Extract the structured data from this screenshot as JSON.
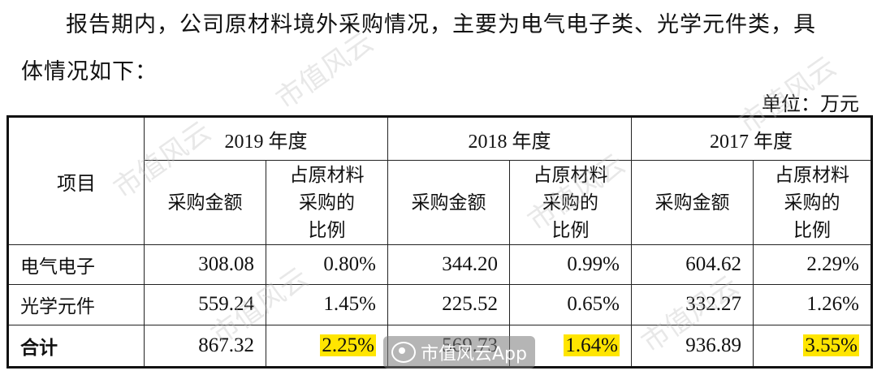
{
  "paragraph": {
    "line1": "报告期内，公司原材料境外采购情况，主要为电气电子类、光学元件类，具",
    "line2": "体情况如下："
  },
  "unit": "单位：万元",
  "table": {
    "item_header": "项目",
    "years": [
      "2019 年度",
      "2018 年度",
      "2017 年度"
    ],
    "amount_header": "采购金额",
    "ratio_header_lines": [
      "占原材料",
      "采购的",
      "比例"
    ],
    "rows": [
      {
        "item": "电气电子",
        "values": [
          "308.08",
          "0.80%",
          "344.20",
          "0.99%",
          "604.62",
          "2.29%"
        ]
      },
      {
        "item": "光学元件",
        "values": [
          "559.24",
          "1.45%",
          "225.52",
          "0.65%",
          "332.27",
          "1.26%"
        ]
      }
    ],
    "total": {
      "item": "合计",
      "values": [
        "867.32",
        "2.25%",
        "569.73",
        "1.64%",
        "936.89",
        "3.55%"
      ]
    },
    "highlight_color": "#ffe500"
  },
  "watermark": {
    "text": "市值风云",
    "badge": "市值风云App"
  }
}
